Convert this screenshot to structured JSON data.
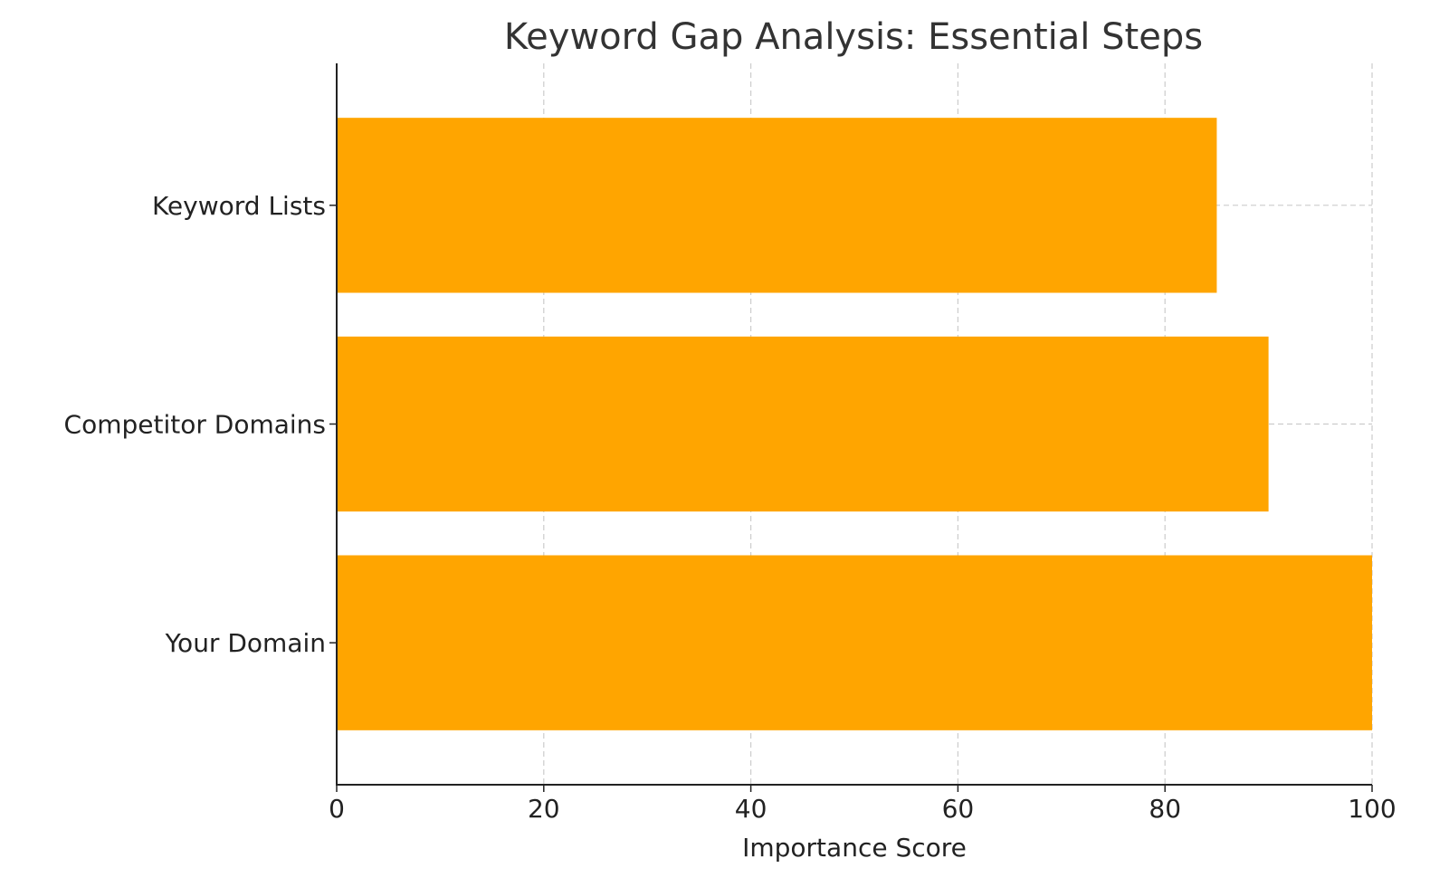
{
  "chart_data": {
    "type": "bar",
    "orientation": "horizontal",
    "title": "Keyword Gap Analysis: Essential Steps",
    "xlabel": "Importance Score",
    "ylabel": "",
    "categories": [
      "Your Domain",
      "Competitor Domains",
      "Keyword Lists"
    ],
    "values": [
      100,
      90,
      85
    ],
    "xlim": [
      0,
      100
    ],
    "xticks": [
      0,
      20,
      40,
      60,
      80,
      100
    ],
    "bar_color": "#FFA500",
    "grid": true,
    "legend": "none"
  }
}
